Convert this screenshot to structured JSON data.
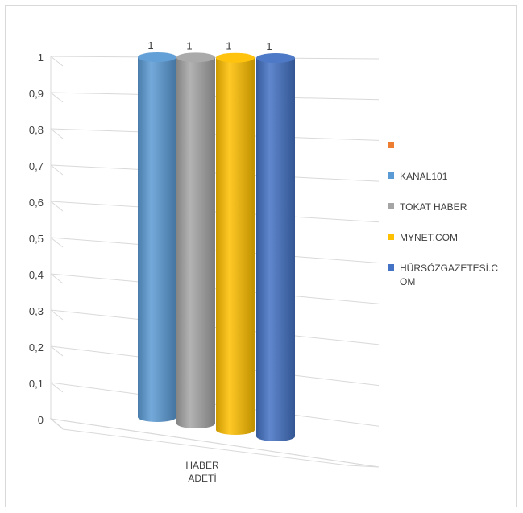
{
  "chart_data": {
    "type": "bar",
    "style": "3d-cylinder",
    "categories": [
      "HABER ADETİ"
    ],
    "category_label_lines": [
      "HABER",
      "ADETİ"
    ],
    "series": [
      {
        "name": "",
        "values": [
          0
        ],
        "color": "#ED7D31"
      },
      {
        "name": "KANAL101",
        "values": [
          1
        ],
        "color": "#5B9BD5"
      },
      {
        "name": "TOKAT HABER",
        "values": [
          1
        ],
        "color": "#A5A5A5"
      },
      {
        "name": "MYNET.COM",
        "values": [
          1
        ],
        "color": "#FFC000"
      },
      {
        "name": "HÜRSÖZGAZETESİ.COM",
        "label_lines": [
          "HÜRSÖZGAZETESİ.C",
          "OM"
        ],
        "values": [
          1
        ],
        "color": "#4472C4"
      }
    ],
    "y_ticks": [
      "0",
      "0,1",
      "0,2",
      "0,3",
      "0,4",
      "0,5",
      "0,6",
      "0,7",
      "0,8",
      "0,9",
      "1"
    ],
    "ylim": [
      0,
      1
    ],
    "data_labels": [
      "1",
      "1",
      "1",
      "1"
    ],
    "grid": true,
    "legend_position": "right"
  }
}
